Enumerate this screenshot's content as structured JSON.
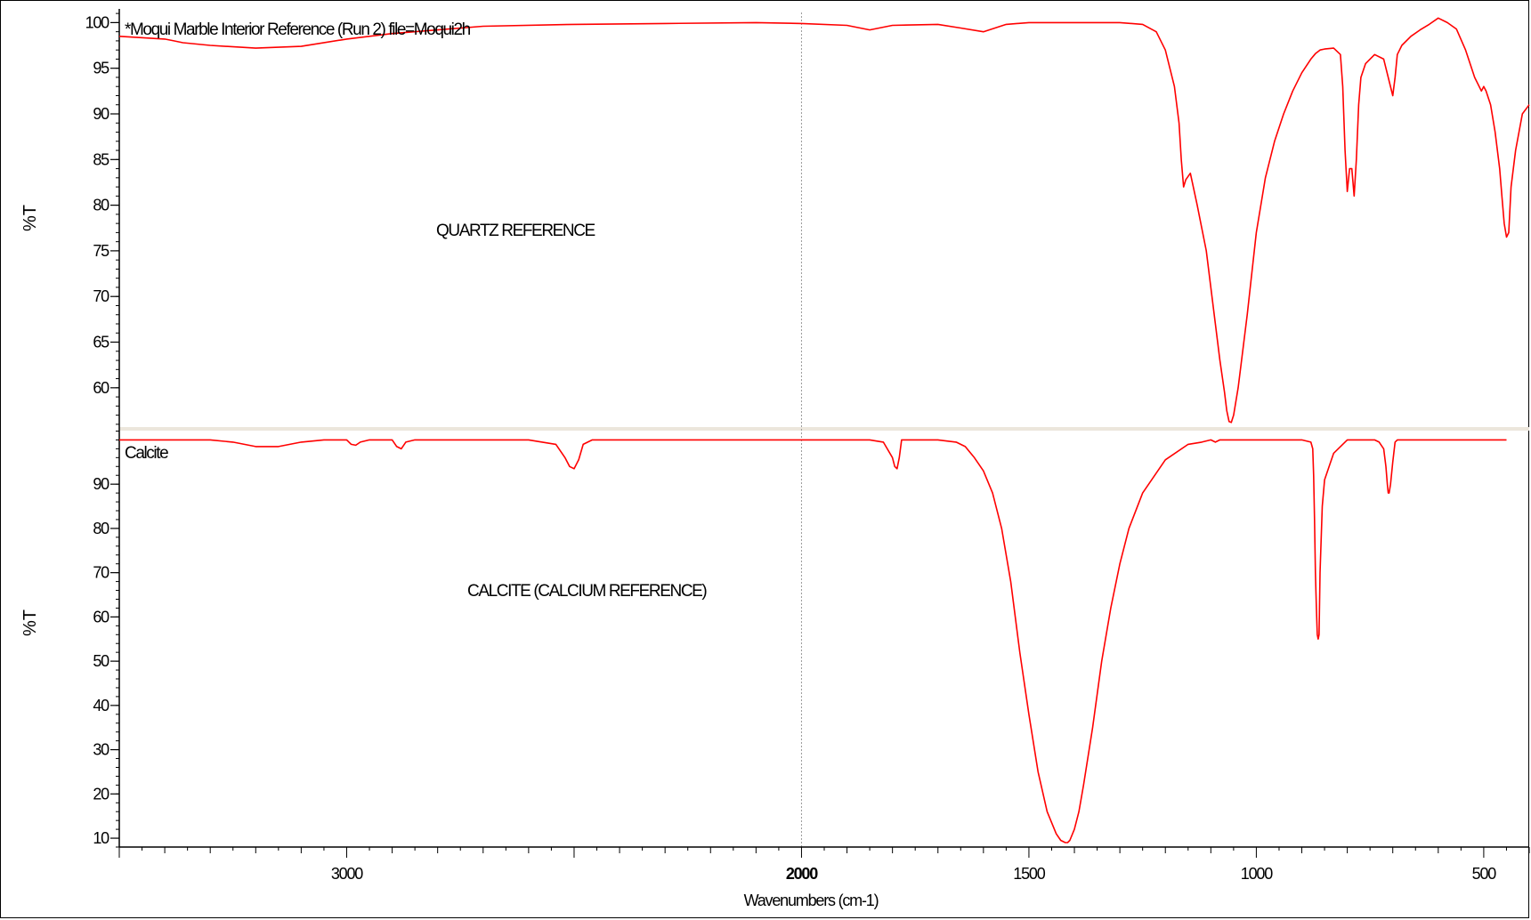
{
  "chart_data": [
    {
      "type": "line",
      "name": "upper",
      "ylabel": "%T",
      "xlim": [
        3500,
        400
      ],
      "ylim": [
        55.5,
        101.5
      ],
      "yticks": [
        60,
        65,
        70,
        75,
        80,
        85,
        90,
        95,
        100
      ],
      "header": "*Moqui Marble Interior Reference (Run 2) file=Moqui2h",
      "annotation": "QUARTZ REFERENCE",
      "line_color": "#ff0000",
      "series": [
        {
          "x": [
            3500,
            3400,
            3380,
            3360,
            3300,
            3200,
            3100,
            3000,
            2900,
            2700,
            2500,
            2300,
            2100,
            2000,
            1900,
            1850,
            1800,
            1700,
            1650,
            1600,
            1550,
            1500,
            1450,
            1400,
            1350,
            1300,
            1250,
            1220,
            1200,
            1180,
            1170,
            1165,
            1160,
            1155,
            1145,
            1130,
            1110,
            1100,
            1090,
            1080,
            1070,
            1065,
            1060,
            1055,
            1050,
            1040,
            1020,
            1000,
            980,
            960,
            940,
            920,
            900,
            880,
            870,
            860,
            850,
            830,
            815,
            810,
            805,
            800,
            795,
            790,
            785,
            780,
            775,
            770,
            760,
            740,
            720,
            700,
            695,
            690,
            680,
            660,
            640,
            620,
            600,
            580,
            560,
            540,
            520,
            505,
            500,
            495,
            485,
            475,
            465,
            460,
            455,
            450,
            445,
            440,
            430,
            415,
            400
          ],
          "y": [
            98.5,
            98.2,
            98.0,
            97.8,
            97.5,
            97.2,
            97.4,
            98.2,
            98.8,
            99.6,
            99.8,
            99.9,
            100.0,
            99.9,
            99.7,
            99.2,
            99.7,
            99.8,
            99.4,
            99.0,
            99.8,
            100.0,
            100.0,
            100.0,
            100.0,
            100.0,
            99.8,
            99.0,
            97.0,
            93.0,
            89.0,
            85.0,
            82.0,
            82.8,
            83.5,
            80.0,
            75.0,
            71.0,
            67.0,
            63.0,
            59.5,
            57.5,
            56.3,
            56.2,
            57.0,
            60.0,
            68.0,
            77.0,
            83.0,
            87.0,
            90.0,
            92.5,
            94.5,
            96.0,
            96.6,
            97.0,
            97.1,
            97.2,
            96.5,
            93.0,
            86.0,
            81.5,
            84.0,
            84.0,
            81.0,
            85.0,
            91.0,
            94.0,
            95.5,
            96.5,
            96.0,
            92.0,
            94.0,
            96.5,
            97.5,
            98.5,
            99.2,
            99.8,
            100.5,
            100.0,
            99.3,
            97.0,
            94.0,
            92.5,
            93.0,
            92.5,
            91.0,
            88.0,
            84.0,
            81.0,
            78.0,
            76.5,
            77.0,
            82.0,
            86.0,
            90.0,
            91.0
          ]
        }
      ]
    },
    {
      "type": "line",
      "name": "lower",
      "ylabel": "%T",
      "xlabel": "Wavenumbers (cm-1)",
      "xlim": [
        3500,
        400
      ],
      "ylim": [
        8,
        102.5
      ],
      "yticks": [
        10,
        20,
        30,
        40,
        50,
        60,
        70,
        80,
        90
      ],
      "xticks": [
        3000,
        2000,
        1500,
        1000,
        500
      ],
      "xticks_bold": [
        2000
      ],
      "header": "Calcite",
      "annotation": "CALCITE (CALCIUM REFERENCE)",
      "line_color": "#ff0000",
      "series": [
        {
          "x": [
            3500,
            3300,
            3250,
            3200,
            3150,
            3100,
            3050,
            3000,
            2990,
            2980,
            2970,
            2950,
            2900,
            2890,
            2880,
            2870,
            2850,
            2800,
            2600,
            2540,
            2520,
            2510,
            2500,
            2490,
            2480,
            2460,
            2200,
            2000,
            1850,
            1820,
            1800,
            1795,
            1790,
            1785,
            1780,
            1770,
            1750,
            1700,
            1660,
            1640,
            1620,
            1600,
            1580,
            1560,
            1540,
            1520,
            1500,
            1480,
            1460,
            1440,
            1430,
            1420,
            1415,
            1410,
            1400,
            1390,
            1380,
            1360,
            1340,
            1320,
            1300,
            1280,
            1250,
            1200,
            1150,
            1120,
            1100,
            1090,
            1080,
            1000,
            900,
            880,
            876,
            874,
            872,
            870,
            868,
            866,
            864,
            862,
            860,
            855,
            850,
            840,
            830,
            800,
            740,
            730,
            720,
            715,
            712,
            710,
            708,
            705,
            700,
            695,
            690,
            680,
            650,
            500,
            450
          ],
          "y": [
            100,
            100,
            99.5,
            98.5,
            98.5,
            99.5,
            100,
            100,
            99.0,
            98.8,
            99.5,
            100,
            100,
            98.5,
            98.0,
            99.5,
            100,
            100,
            100,
            99.0,
            96.0,
            94.0,
            93.5,
            95.5,
            99.0,
            100,
            100,
            100,
            100,
            99.5,
            96.0,
            94.0,
            93.5,
            96.0,
            100,
            100,
            100,
            100,
            99.5,
            98.5,
            96.0,
            93.0,
            88.0,
            80.0,
            68.0,
            52.0,
            38.0,
            25.0,
            16.0,
            11.0,
            9.5,
            9.0,
            9.0,
            9.5,
            12.0,
            16.0,
            22.0,
            35.0,
            50.0,
            62.0,
            72.0,
            80.0,
            88.0,
            95.5,
            99.0,
            99.5,
            100,
            99.5,
            100,
            100,
            100,
            99.5,
            98.0,
            92.0,
            82.0,
            70.0,
            62.0,
            56.0,
            55.0,
            56.0,
            70.0,
            85.0,
            91.0,
            94.0,
            97.0,
            100,
            100,
            99.5,
            98.0,
            94.0,
            90.0,
            88.0,
            88.0,
            90.0,
            95.0,
            99.5,
            100,
            100,
            100,
            100,
            100
          ]
        }
      ]
    }
  ]
}
